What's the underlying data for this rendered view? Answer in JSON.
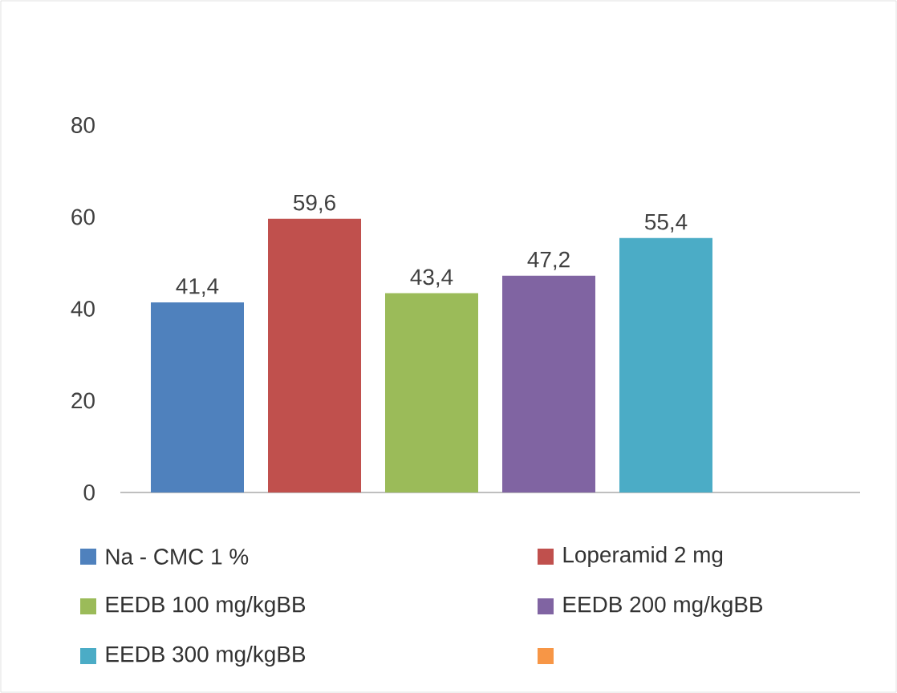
{
  "chart_data": {
    "type": "bar",
    "categories": [
      null
    ],
    "series": [
      {
        "name": "Na - CMC 1 %",
        "color": "#4f81bd",
        "values": [
          41.4
        ],
        "value_labels": [
          "41,4"
        ]
      },
      {
        "name": "Loperamid 2 mg",
        "color": "#c0504d",
        "values": [
          59.6
        ],
        "value_labels": [
          "59,6"
        ]
      },
      {
        "name": "EEDB 100 mg/kgBB",
        "color": "#9bbb59",
        "values": [
          43.4
        ],
        "value_labels": [
          "43,4"
        ]
      },
      {
        "name": "EEDB 200 mg/kgBB",
        "color": "#8064a2",
        "values": [
          47.2
        ],
        "value_labels": [
          "47,2"
        ]
      },
      {
        "name": "EEDB 300 mg/kgBB",
        "color": "#4bacc6",
        "values": [
          55.4
        ],
        "value_labels": [
          "55,4"
        ]
      },
      {
        "color": "#f79646",
        "values": [
          null
        ]
      }
    ],
    "ylim": [
      0,
      80
    ],
    "yticks": [
      0,
      20,
      40,
      60,
      80
    ],
    "grid": false,
    "legend": "bottom"
  }
}
